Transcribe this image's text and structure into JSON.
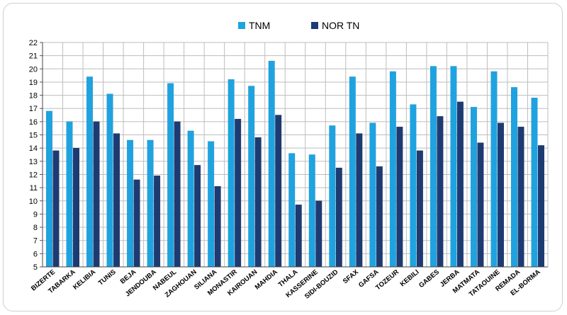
{
  "chart_data": {
    "type": "bar",
    "title": "",
    "xlabel": "",
    "ylabel": "",
    "ylim": [
      5,
      22
    ],
    "yticks": [
      5,
      6,
      7,
      8,
      9,
      10,
      11,
      12,
      13,
      14,
      15,
      16,
      17,
      18,
      19,
      20,
      21,
      22
    ],
    "grid": true,
    "legend_position": "top-center",
    "categories": [
      "BIZERTE",
      "TABARKA",
      "KELIBIA",
      "TUNIS",
      "BEJA",
      "JENDOUBA",
      "NABEUL",
      "ZAGHOUAN",
      "SILIANA",
      "MONASTIR",
      "KAIROUAN",
      "MAHDIA",
      "THALA",
      "KASSERINE",
      "SIDI-BOUZID",
      "SFAX",
      "GAFSA",
      "TOZEUR",
      "KEBILI",
      "GABES",
      "JERBA",
      "MATMATA",
      "TATAOUINE",
      "REMADA",
      "EL-BORMA"
    ],
    "series": [
      {
        "name": "TNM",
        "color": "#1fa3e0",
        "values": [
          16.8,
          16.0,
          19.4,
          18.1,
          14.6,
          14.6,
          18.9,
          15.3,
          14.5,
          19.2,
          18.7,
          20.6,
          13.6,
          13.5,
          15.7,
          19.4,
          15.9,
          19.8,
          17.3,
          20.2,
          20.2,
          17.1,
          19.8,
          18.6,
          17.8
        ]
      },
      {
        "name": "NOR TN",
        "color": "#1d3b73",
        "values": [
          13.8,
          14.0,
          16.0,
          15.1,
          11.6,
          11.9,
          16.0,
          12.7,
          11.1,
          16.2,
          14.8,
          16.5,
          9.7,
          10.0,
          12.5,
          15.1,
          12.6,
          15.6,
          13.8,
          16.4,
          17.5,
          14.4,
          15.9,
          15.6,
          14.2
        ]
      }
    ]
  }
}
